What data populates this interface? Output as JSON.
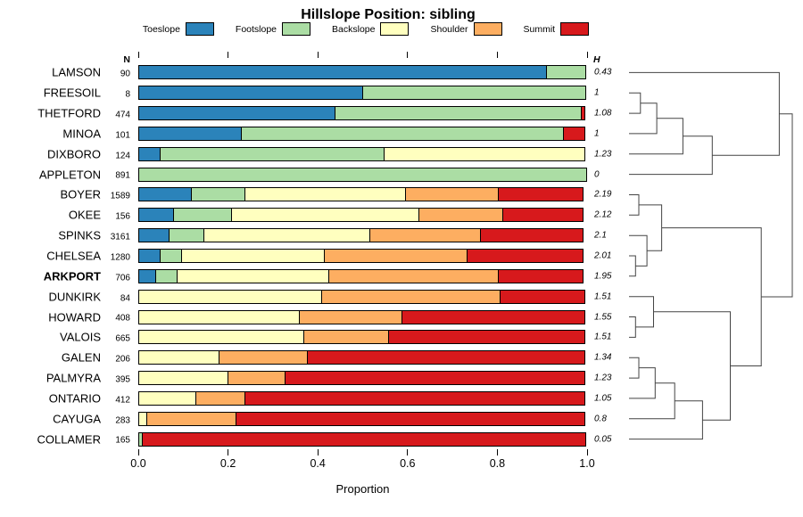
{
  "title": "Hillslope Position: sibling",
  "columns": {
    "n_header": "N",
    "h_header": "H"
  },
  "legend": [
    {
      "label": "Toeslope",
      "color": "#2b83ba"
    },
    {
      "label": "Footslope",
      "color": "#abdda4"
    },
    {
      "label": "Backslope",
      "color": "#ffffbf"
    },
    {
      "label": "Shoulder",
      "color": "#fdae61"
    },
    {
      "label": "Summit",
      "color": "#d7191c"
    }
  ],
  "axis": {
    "ticks": [
      0,
      0.2,
      0.4,
      0.6,
      0.8,
      1
    ],
    "tick_labels": [
      "0.0",
      "0.2",
      "0.4",
      "0.6",
      "0.8",
      "1.0"
    ],
    "xlabel": "Proportion"
  },
  "chart_data": {
    "type": "bar",
    "stacked": true,
    "orientation": "horizontal",
    "title": "Hillslope Position: sibling",
    "xlabel": "Proportion",
    "xlim": [
      0,
      1
    ],
    "series_names": [
      "Toeslope",
      "Footslope",
      "Backslope",
      "Shoulder",
      "Summit"
    ],
    "colors": [
      "#2b83ba",
      "#abdda4",
      "#ffffbf",
      "#fdae61",
      "#d7191c"
    ],
    "rows": [
      {
        "name": "LAMSON",
        "n": "90",
        "h": "0.43",
        "bold": false,
        "values": [
          0.91,
          0.09,
          0,
          0,
          0
        ]
      },
      {
        "name": "FREESOIL",
        "n": "8",
        "h": "1",
        "bold": false,
        "values": [
          0.5,
          0.5,
          0,
          0,
          0
        ]
      },
      {
        "name": "THETFORD",
        "n": "474",
        "h": "1.08",
        "bold": false,
        "values": [
          0.44,
          0.55,
          0,
          0,
          0.01
        ]
      },
      {
        "name": "MINOA",
        "n": "101",
        "h": "1",
        "bold": false,
        "values": [
          0.23,
          0.72,
          0,
          0,
          0.05
        ]
      },
      {
        "name": "DIXBORO",
        "n": "124",
        "h": "1.23",
        "bold": false,
        "values": [
          0.05,
          0.5,
          0.45,
          0,
          0
        ]
      },
      {
        "name": "APPLETON",
        "n": "891",
        "h": "0",
        "bold": false,
        "values": [
          0,
          1.0,
          0,
          0,
          0
        ]
      },
      {
        "name": "BOYER",
        "n": "1589",
        "h": "2.19",
        "bold": false,
        "values": [
          0.12,
          0.12,
          0.36,
          0.21,
          0.19
        ]
      },
      {
        "name": "OKEE",
        "n": "156",
        "h": "2.12",
        "bold": false,
        "values": [
          0.08,
          0.13,
          0.42,
          0.19,
          0.18
        ]
      },
      {
        "name": "SPINKS",
        "n": "3161",
        "h": "2.1",
        "bold": false,
        "values": [
          0.07,
          0.08,
          0.37,
          0.25,
          0.23
        ]
      },
      {
        "name": "CHELSEA",
        "n": "1280",
        "h": "2.01",
        "bold": false,
        "values": [
          0.05,
          0.05,
          0.32,
          0.32,
          0.26
        ]
      },
      {
        "name": "ARKPORT",
        "n": "706",
        "h": "1.95",
        "bold": true,
        "values": [
          0.04,
          0.05,
          0.34,
          0.38,
          0.19
        ]
      },
      {
        "name": "DUNKIRK",
        "n": "84",
        "h": "1.51",
        "bold": false,
        "values": [
          0,
          0,
          0.41,
          0.4,
          0.19
        ]
      },
      {
        "name": "HOWARD",
        "n": "408",
        "h": "1.55",
        "bold": false,
        "values": [
          0,
          0,
          0.36,
          0.23,
          0.41
        ]
      },
      {
        "name": "VALOIS",
        "n": "665",
        "h": "1.51",
        "bold": false,
        "values": [
          0,
          0,
          0.37,
          0.19,
          0.44
        ]
      },
      {
        "name": "GALEN",
        "n": "206",
        "h": "1.34",
        "bold": false,
        "values": [
          0,
          0,
          0.18,
          0.2,
          0.62
        ]
      },
      {
        "name": "PALMYRA",
        "n": "395",
        "h": "1.23",
        "bold": false,
        "values": [
          0,
          0,
          0.2,
          0.13,
          0.67
        ]
      },
      {
        "name": "ONTARIO",
        "n": "412",
        "h": "1.05",
        "bold": false,
        "values": [
          0,
          0,
          0.13,
          0.11,
          0.76
        ]
      },
      {
        "name": "CAYUGA",
        "n": "283",
        "h": "0.8",
        "bold": false,
        "values": [
          0,
          0,
          0.02,
          0.2,
          0.78
        ]
      },
      {
        "name": "COLLAMER",
        "n": "165",
        "h": "0.05",
        "bold": false,
        "values": [
          0,
          0.01,
          0,
          0,
          0.99
        ]
      }
    ]
  },
  "dendrogram": {
    "description": "hierarchical clustering of series by hillslope position profile",
    "merges": [
      [
        "FREESOIL",
        "THETFORD",
        0.07
      ],
      [
        "m1",
        "MINOA",
        0.17
      ],
      [
        "m2",
        "DIXBORO",
        0.33
      ],
      [
        "m3",
        "APPLETON",
        0.51
      ],
      [
        "LAMSON",
        "m4",
        0.92
      ],
      [
        "BOYER",
        "OKEE",
        0.06
      ],
      [
        "CHELSEA",
        "ARKPORT",
        0.04
      ],
      [
        "SPINKS",
        "m7",
        0.11
      ],
      [
        "m6",
        "m8",
        0.2
      ],
      [
        "HOWARD",
        "VALOIS",
        0.04
      ],
      [
        "DUNKIRK",
        "m10",
        0.15
      ],
      [
        "GALEN",
        "PALMYRA",
        0.06
      ],
      [
        "m12",
        "ONTARIO",
        0.16
      ],
      [
        "m13",
        "CAYUGA",
        0.28
      ],
      [
        "m14",
        "COLLAMER",
        0.45
      ],
      [
        "m11",
        "m15",
        0.62
      ],
      [
        "m9",
        "m16",
        0.81
      ],
      [
        "m5",
        "m17",
        1.0
      ]
    ]
  }
}
